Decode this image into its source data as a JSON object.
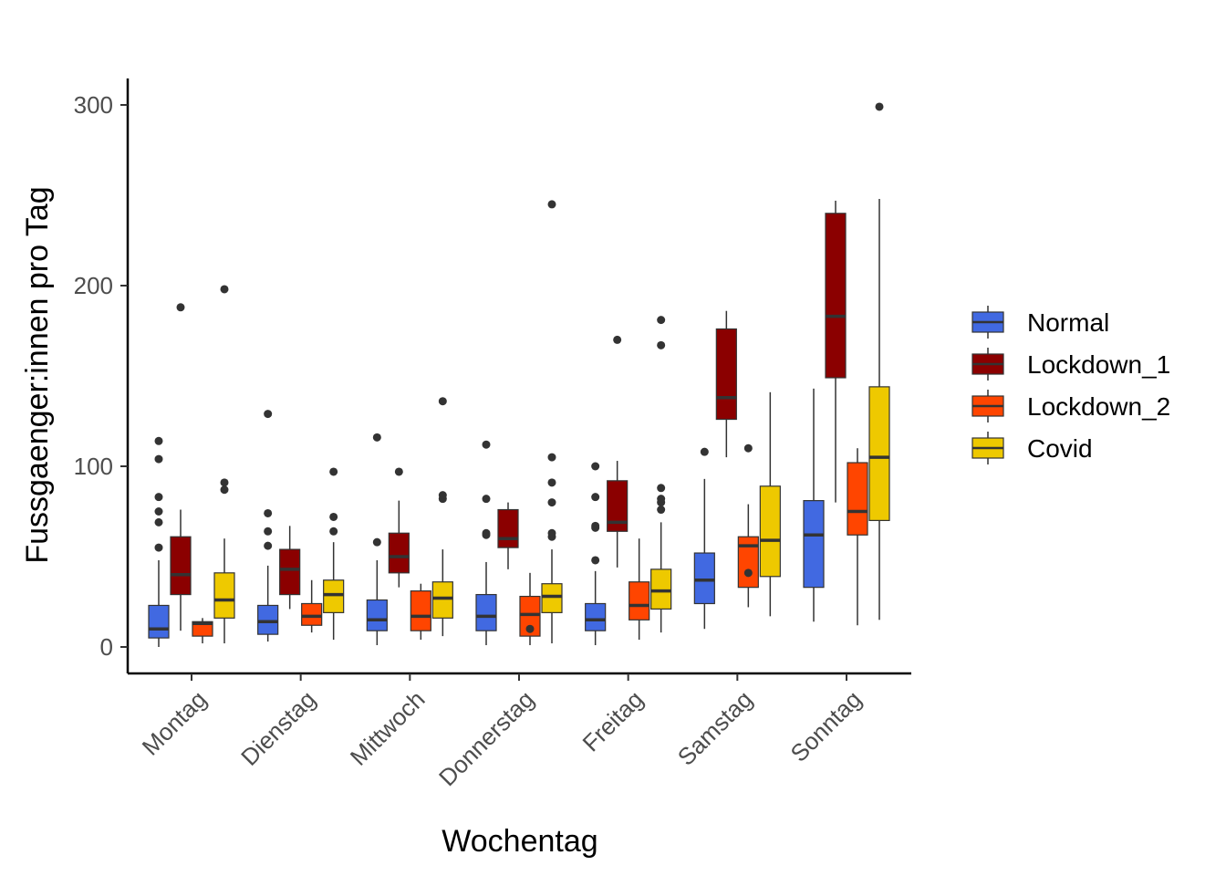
{
  "chart_data": {
    "type": "boxplot",
    "xlabel": "Wochentag",
    "ylabel": "Fussgaenger:innen pro Tag",
    "ylim": [
      -15,
      315
    ],
    "yticks": [
      0,
      100,
      200,
      300
    ],
    "categories": [
      "Montag",
      "Dienstag",
      "Mittwoch",
      "Donnerstag",
      "Freitag",
      "Samstag",
      "Sonntag"
    ],
    "legend_position": "right",
    "grid": false,
    "series": [
      {
        "name": "Normal",
        "color": "#4169E1",
        "boxes": [
          {
            "min": 0,
            "q1": 5,
            "median": 10,
            "q3": 23,
            "max": 48,
            "outliers": [
              55,
              69,
              75,
              83,
              104,
              114
            ]
          },
          {
            "min": 3,
            "q1": 7,
            "median": 14,
            "q3": 23,
            "max": 45,
            "outliers": [
              56,
              64,
              74,
              129
            ]
          },
          {
            "min": 1,
            "q1": 9,
            "median": 15,
            "q3": 26,
            "max": 48,
            "outliers": [
              58,
              116
            ]
          },
          {
            "min": 1,
            "q1": 9,
            "median": 17,
            "q3": 29,
            "max": 47,
            "outliers": [
              62,
              63,
              82,
              112
            ]
          },
          {
            "min": 1,
            "q1": 9,
            "median": 15,
            "q3": 24,
            "max": 42,
            "outliers": [
              48,
              66,
              67,
              83,
              100
            ]
          },
          {
            "min": 10,
            "q1": 24,
            "median": 37,
            "q3": 52,
            "max": 93,
            "outliers": [
              108
            ]
          },
          {
            "min": 14,
            "q1": 33,
            "median": 62,
            "q3": 81,
            "max": 143,
            "outliers": []
          }
        ]
      },
      {
        "name": "Lockdown_1",
        "color": "#8B0000",
        "boxes": [
          {
            "min": 9,
            "q1": 29,
            "median": 40,
            "q3": 61,
            "max": 76,
            "outliers": [
              188
            ]
          },
          {
            "min": 21,
            "q1": 29,
            "median": 43,
            "q3": 54,
            "max": 67,
            "outliers": []
          },
          {
            "min": 33,
            "q1": 41,
            "median": 50,
            "q3": 63,
            "max": 81,
            "outliers": [
              97
            ]
          },
          {
            "min": 43,
            "q1": 55,
            "median": 60,
            "q3": 76,
            "max": 80,
            "outliers": []
          },
          {
            "min": 44,
            "q1": 64,
            "median": 69,
            "q3": 92,
            "max": 103,
            "outliers": [
              170
            ]
          },
          {
            "min": 105,
            "q1": 126,
            "median": 138,
            "q3": 176,
            "max": 186,
            "outliers": []
          },
          {
            "min": 80,
            "q1": 149,
            "median": 183,
            "q3": 240,
            "max": 247,
            "outliers": []
          }
        ]
      },
      {
        "name": "Lockdown_2",
        "color": "#FF4500",
        "boxes": [
          {
            "min": 2,
            "q1": 6,
            "median": 13,
            "q3": 14,
            "max": 16,
            "outliers": []
          },
          {
            "min": 8,
            "q1": 12,
            "median": 17,
            "q3": 24,
            "max": 37,
            "outliers": []
          },
          {
            "min": 4,
            "q1": 9,
            "median": 17,
            "q3": 31,
            "max": 35,
            "outliers": []
          },
          {
            "min": 1,
            "q1": 6,
            "median": 18,
            "q3": 28,
            "max": 41,
            "outliers": [
              10
            ]
          },
          {
            "min": 4,
            "q1": 15,
            "median": 23,
            "q3": 36,
            "max": 60,
            "outliers": []
          },
          {
            "min": 22,
            "q1": 33,
            "median": 56,
            "q3": 61,
            "max": 79,
            "outliers": [
              41,
              110
            ]
          },
          {
            "min": 12,
            "q1": 62,
            "median": 75,
            "q3": 102,
            "max": 110,
            "outliers": []
          }
        ]
      },
      {
        "name": "Covid",
        "color": "#EEC900",
        "boxes": [
          {
            "min": 2,
            "q1": 16,
            "median": 26,
            "q3": 41,
            "max": 60,
            "outliers": [
              87,
              91,
              198
            ]
          },
          {
            "min": 4,
            "q1": 19,
            "median": 29,
            "q3": 37,
            "max": 58,
            "outliers": [
              64,
              72,
              97
            ]
          },
          {
            "min": 6,
            "q1": 16,
            "median": 27,
            "q3": 36,
            "max": 54,
            "outliers": [
              82,
              84,
              136
            ]
          },
          {
            "min": 2,
            "q1": 19,
            "median": 28,
            "q3": 35,
            "max": 54,
            "outliers": [
              61,
              63,
              80,
              91,
              105,
              245
            ]
          },
          {
            "min": 8,
            "q1": 21,
            "median": 31,
            "q3": 43,
            "max": 69,
            "outliers": [
              76,
              80,
              82,
              88,
              167,
              181
            ]
          },
          {
            "min": 17,
            "q1": 39,
            "median": 59,
            "q3": 89,
            "max": 141,
            "outliers": []
          },
          {
            "min": 15,
            "q1": 70,
            "median": 105,
            "q3": 144,
            "max": 248,
            "outliers": [
              299
            ]
          }
        ]
      }
    ]
  }
}
